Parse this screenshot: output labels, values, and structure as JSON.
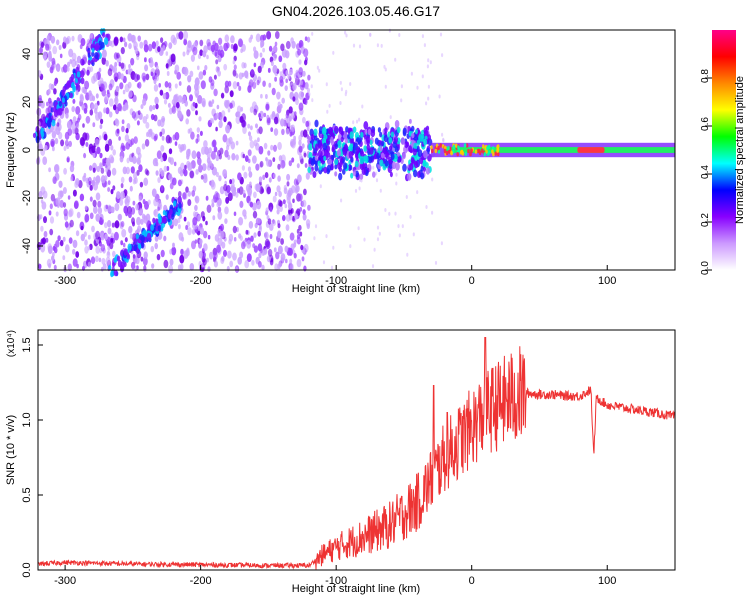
{
  "title": "GN04.2026.103.05.46.G17",
  "chart_data": [
    {
      "type": "heatmap",
      "xlabel": "Height of straight line (km)",
      "ylabel": "Frequency (Hz)",
      "xlim": [
        -320,
        150
      ],
      "ylim": [
        -50,
        50
      ],
      "xticks": [
        -300,
        -200,
        -100,
        0,
        100
      ],
      "yticks": [
        -40,
        -20,
        0,
        20,
        40
      ],
      "colorbar": {
        "label": "Normalized spectral amplitude",
        "range": [
          0,
          1
        ],
        "ticks": [
          0.0,
          0.2,
          0.4,
          0.6,
          0.8
        ],
        "colors": [
          "#ffffff",
          "#cc99ff",
          "#8800ff",
          "#0000ff",
          "#00ffff",
          "#00ff00",
          "#ffff00",
          "#ff8800",
          "#ff0000",
          "#ff0088"
        ]
      },
      "features": [
        {
          "kind": "diagonal-band",
          "x": [
            -320,
            -270
          ],
          "y": [
            5,
            48
          ]
        },
        {
          "kind": "diagonal-band",
          "x": [
            -265,
            -215
          ],
          "y": [
            -50,
            -22
          ]
        },
        {
          "kind": "noise-field",
          "x": [
            -320,
            -120
          ],
          "y": [
            -50,
            48
          ]
        },
        {
          "kind": "strong-line",
          "x": [
            -120,
            150
          ],
          "y": [
            0,
            0
          ]
        }
      ]
    },
    {
      "type": "line",
      "xlabel": "Height of straight line (km)",
      "ylabel": "SNR (10 * v/v)",
      "multiplier": "(x10⁴)",
      "xlim": [
        -320,
        150
      ],
      "ylim": [
        0,
        1.6
      ],
      "xticks": [
        -300,
        -200,
        -100,
        0,
        100
      ],
      "yticks": [
        "0.0",
        "0.5",
        "1.0",
        "1.5"
      ],
      "color": "#ee3333",
      "points": [
        [
          -320,
          0.04
        ],
        [
          -300,
          0.05
        ],
        [
          -250,
          0.04
        ],
        [
          -200,
          0.035
        ],
        [
          -150,
          0.03
        ],
        [
          -120,
          0.03
        ],
        [
          -110,
          0.1
        ],
        [
          -100,
          0.15
        ],
        [
          -80,
          0.22
        ],
        [
          -60,
          0.3
        ],
        [
          -40,
          0.45
        ],
        [
          -30,
          0.6
        ],
        [
          -20,
          0.75
        ],
        [
          -10,
          0.85
        ],
        [
          0,
          0.95
        ],
        [
          10,
          1.05
        ],
        [
          20,
          1.1
        ],
        [
          30,
          1.15
        ],
        [
          40,
          1.18
        ],
        [
          50,
          1.17
        ],
        [
          60,
          1.17
        ],
        [
          70,
          1.16
        ],
        [
          80,
          1.16
        ],
        [
          88,
          1.2
        ],
        [
          90,
          0.75
        ],
        [
          92,
          1.15
        ],
        [
          100,
          1.1
        ],
        [
          120,
          1.07
        ],
        [
          140,
          1.04
        ],
        [
          150,
          1.02
        ]
      ],
      "spikes": [
        [
          -28,
          1.23
        ],
        [
          10,
          1.55
        ],
        [
          -18,
          1.05
        ]
      ]
    }
  ]
}
